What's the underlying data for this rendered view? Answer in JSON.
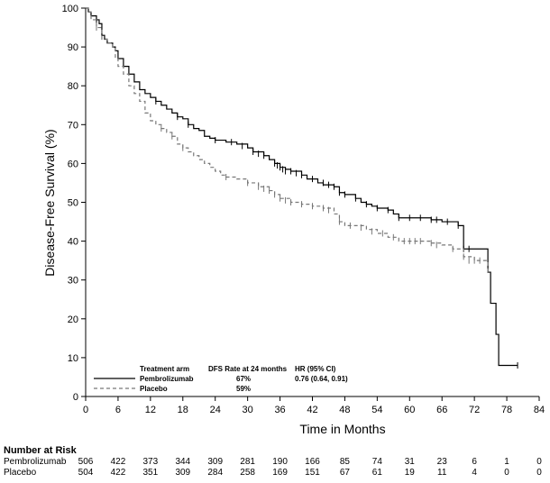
{
  "chart_data": {
    "type": "line",
    "subtype": "kaplan-meier step curve",
    "title": "",
    "ylabel": "Disease-Free Survival (%)",
    "xlabel": "Time in Months",
    "xlim": [
      0,
      84
    ],
    "ylim": [
      0,
      100
    ],
    "xticks": [
      0,
      6,
      12,
      18,
      24,
      30,
      36,
      42,
      48,
      54,
      60,
      66,
      72,
      78,
      84
    ],
    "yticks": [
      0,
      10,
      20,
      30,
      40,
      50,
      60,
      70,
      80,
      90,
      100
    ],
    "grid": false,
    "series": [
      {
        "name": "Pembrolizumab",
        "color": "#000000",
        "dash": "solid",
        "points": [
          [
            0,
            100
          ],
          [
            0.5,
            99
          ],
          [
            1,
            98
          ],
          [
            2,
            97
          ],
          [
            2.5,
            96
          ],
          [
            3,
            93
          ],
          [
            3.5,
            92
          ],
          [
            4,
            91
          ],
          [
            5,
            90
          ],
          [
            5.5,
            89
          ],
          [
            6,
            87
          ],
          [
            7,
            85
          ],
          [
            8,
            83
          ],
          [
            9,
            81
          ],
          [
            10,
            79
          ],
          [
            11,
            78
          ],
          [
            12,
            77
          ],
          [
            13,
            76
          ],
          [
            14,
            75
          ],
          [
            15,
            74
          ],
          [
            16,
            73
          ],
          [
            17,
            72
          ],
          [
            18,
            71.5
          ],
          [
            19,
            70
          ],
          [
            20,
            69
          ],
          [
            21,
            68.5
          ],
          [
            22,
            67
          ],
          [
            23,
            66.5
          ],
          [
            24,
            66
          ],
          [
            26,
            65.5
          ],
          [
            28,
            65
          ],
          [
            30,
            64
          ],
          [
            31,
            63
          ],
          [
            33,
            62
          ],
          [
            34,
            61
          ],
          [
            35,
            60
          ],
          [
            36,
            59
          ],
          [
            37,
            58.5
          ],
          [
            38,
            58
          ],
          [
            40,
            57
          ],
          [
            41,
            56
          ],
          [
            43,
            55
          ],
          [
            44,
            54.5
          ],
          [
            46,
            54
          ],
          [
            47,
            52.5
          ],
          [
            48,
            52
          ],
          [
            50,
            51
          ],
          [
            51,
            50
          ],
          [
            52,
            49.5
          ],
          [
            53,
            49
          ],
          [
            54,
            48.5
          ],
          [
            56,
            48
          ],
          [
            57,
            47
          ],
          [
            58,
            46
          ],
          [
            59,
            46
          ],
          [
            61,
            46
          ],
          [
            64,
            45.5
          ],
          [
            66,
            45
          ],
          [
            69,
            44
          ],
          [
            70,
            38
          ],
          [
            72,
            38
          ],
          [
            74,
            38
          ],
          [
            74.5,
            32
          ],
          [
            75,
            24
          ],
          [
            76,
            16
          ],
          [
            76.5,
            8
          ],
          [
            80,
            8
          ]
        ],
        "censor_points": [
          [
            1,
            98
          ],
          [
            2,
            97
          ],
          [
            13,
            76
          ],
          [
            17,
            72
          ],
          [
            19,
            70
          ],
          [
            24,
            66
          ],
          [
            27,
            65.5
          ],
          [
            29,
            64.5
          ],
          [
            31,
            63
          ],
          [
            32,
            62.5
          ],
          [
            33,
            62
          ],
          [
            35,
            60
          ],
          [
            35.5,
            59.5
          ],
          [
            36,
            59
          ],
          [
            36.5,
            58.5
          ],
          [
            37,
            58
          ],
          [
            38,
            58
          ],
          [
            39,
            57.5
          ],
          [
            40,
            57
          ],
          [
            42,
            56
          ],
          [
            44,
            55
          ],
          [
            45,
            54.5
          ],
          [
            46,
            54
          ],
          [
            47,
            52.5
          ],
          [
            48,
            52
          ],
          [
            50,
            51
          ],
          [
            52,
            49.5
          ],
          [
            54,
            48.5
          ],
          [
            56,
            48
          ],
          [
            58,
            46
          ],
          [
            60,
            46
          ],
          [
            62,
            46
          ],
          [
            64,
            45.5
          ],
          [
            65,
            45.5
          ],
          [
            67,
            45
          ],
          [
            69,
            44
          ],
          [
            70,
            38
          ],
          [
            71,
            38
          ],
          [
            80,
            8
          ]
        ]
      },
      {
        "name": "Placebo",
        "color": "#777777",
        "dash": "dashed",
        "points": [
          [
            0,
            100
          ],
          [
            0.5,
            99
          ],
          [
            1,
            97
          ],
          [
            2,
            95
          ],
          [
            3,
            92
          ],
          [
            4,
            91
          ],
          [
            5,
            90
          ],
          [
            5.5,
            87
          ],
          [
            6,
            85
          ],
          [
            7,
            83
          ],
          [
            8,
            80
          ],
          [
            9,
            78
          ],
          [
            10,
            76
          ],
          [
            11,
            73
          ],
          [
            12,
            71
          ],
          [
            13,
            70
          ],
          [
            14,
            69
          ],
          [
            15,
            68
          ],
          [
            16,
            67
          ],
          [
            17,
            65
          ],
          [
            18,
            64
          ],
          [
            19,
            63
          ],
          [
            20,
            62
          ],
          [
            21,
            61
          ],
          [
            22,
            60
          ],
          [
            23,
            59
          ],
          [
            24,
            58
          ],
          [
            25,
            57
          ],
          [
            26,
            56.5
          ],
          [
            28,
            56
          ],
          [
            30,
            55
          ],
          [
            32,
            54
          ],
          [
            34,
            53
          ],
          [
            35,
            52
          ],
          [
            36,
            51
          ],
          [
            38,
            50
          ],
          [
            40,
            49.5
          ],
          [
            42,
            49
          ],
          [
            44,
            48.5
          ],
          [
            46,
            47
          ],
          [
            47,
            45
          ],
          [
            48,
            44
          ],
          [
            50,
            44
          ],
          [
            52,
            43
          ],
          [
            54,
            42
          ],
          [
            56,
            41
          ],
          [
            58,
            40
          ],
          [
            60,
            40
          ],
          [
            62,
            40
          ],
          [
            64,
            39.5
          ],
          [
            66,
            39
          ],
          [
            68,
            38
          ],
          [
            70,
            36
          ],
          [
            72,
            35
          ],
          [
            74,
            35
          ],
          [
            74.5,
            32
          ]
        ],
        "censor_points": [
          [
            2,
            95
          ],
          [
            14,
            69
          ],
          [
            16,
            67
          ],
          [
            18,
            64
          ],
          [
            26,
            56.5
          ],
          [
            30,
            55
          ],
          [
            32,
            54
          ],
          [
            33,
            53.5
          ],
          [
            34,
            53
          ],
          [
            35,
            52
          ],
          [
            36,
            51
          ],
          [
            37,
            50.5
          ],
          [
            38,
            50
          ],
          [
            40,
            49.5
          ],
          [
            42,
            49
          ],
          [
            44,
            48.5
          ],
          [
            45,
            48
          ],
          [
            47,
            45
          ],
          [
            49,
            44
          ],
          [
            51,
            43.5
          ],
          [
            53,
            42.5
          ],
          [
            55,
            42
          ],
          [
            57,
            41
          ],
          [
            59,
            40
          ],
          [
            60,
            40
          ],
          [
            61,
            40
          ],
          [
            62,
            40
          ],
          [
            64,
            39.5
          ],
          [
            65,
            39
          ],
          [
            68,
            38
          ],
          [
            70,
            36
          ],
          [
            71,
            35
          ],
          [
            72,
            35
          ],
          [
            73,
            35
          ]
        ]
      }
    ],
    "legend": {
      "placement": "bottom-left",
      "headers": [
        "Treatment arm",
        "DFS Rate at 24 months",
        "HR (95% CI)"
      ],
      "rows": [
        {
          "arm": "Pembrolizumab",
          "rate": "67%",
          "hr": "0.76 (0.64, 0.91)"
        },
        {
          "arm": "Placebo",
          "rate": "59%",
          "hr": ""
        }
      ]
    },
    "risk_table": {
      "title": "Number at Risk",
      "rows": [
        {
          "label": "Pembrolizumab",
          "values": [
            "506",
            "422",
            "373",
            "344",
            "309",
            "281",
            "190",
            "166",
            "85",
            "74",
            "31",
            "23",
            "6",
            "1",
            "0"
          ]
        },
        {
          "label": "Placebo",
          "values": [
            "504",
            "422",
            "351",
            "309",
            "284",
            "258",
            "169",
            "151",
            "67",
            "61",
            "19",
            "11",
            "4",
            "0",
            "0"
          ]
        }
      ]
    }
  }
}
